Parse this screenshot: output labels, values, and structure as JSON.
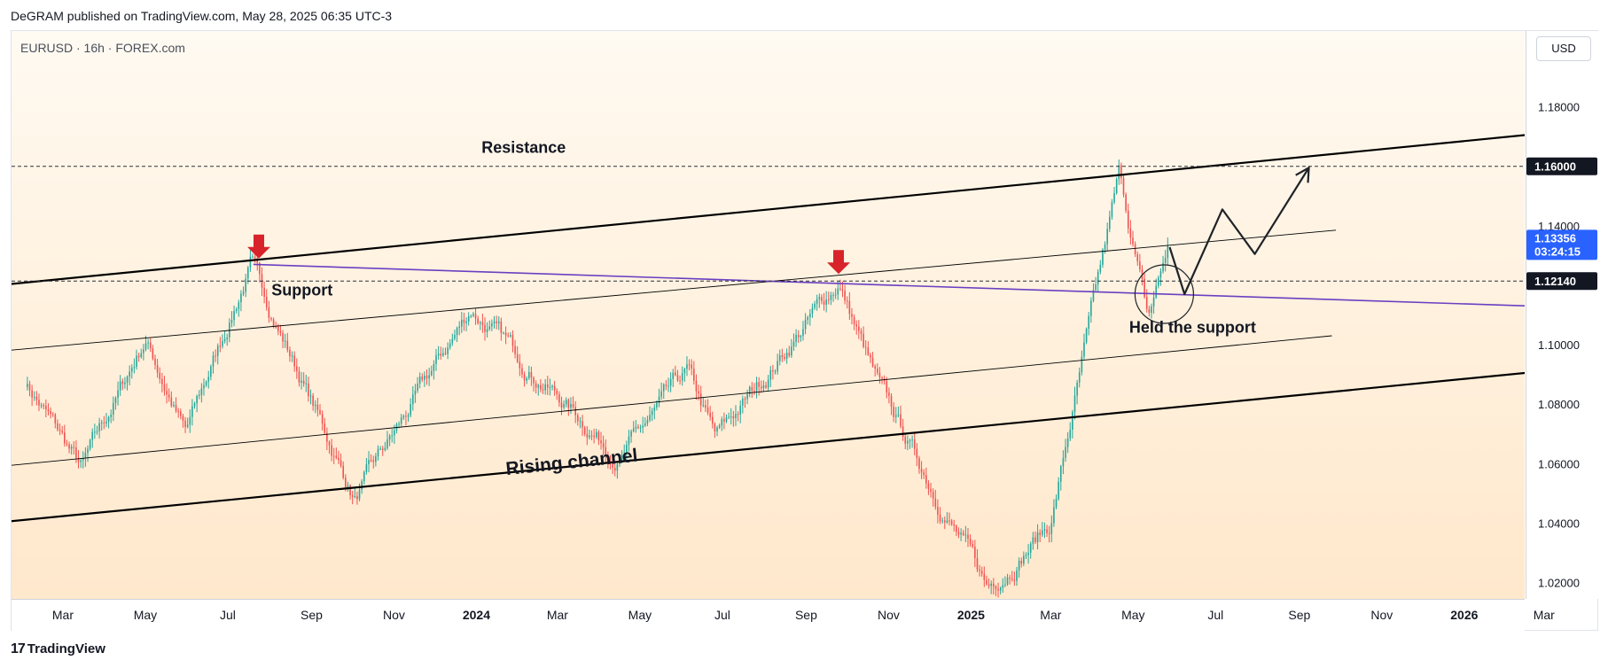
{
  "header": {
    "published_line": "DeGRAM published on TradingView.com, May 28, 2025 06:35 UTC-3"
  },
  "chart_header": {
    "symbol_line": "EURUSD · 16h · FOREX.com",
    "currency": "USD"
  },
  "footer": {
    "logo_text": "TradingView",
    "logo_mark": "17"
  },
  "colors": {
    "up_candle": "#26a69a",
    "down_candle": "#ef5350",
    "channel_line": "#000000",
    "trend_line": "#6a3fc1",
    "arrow": "#d8232a",
    "price_label_bg": "#131722",
    "current_price_bg": "#2962ff"
  },
  "chart_data": {
    "type": "candlestick",
    "symbol": "EURUSD",
    "interval": "16h",
    "x_tick_labels": [
      "Mar",
      "May",
      "Jul",
      "Sep",
      "Nov",
      "2024",
      "Mar",
      "May",
      "Jul",
      "Sep",
      "Nov",
      "2025",
      "Mar",
      "May",
      "Jul",
      "Sep",
      "Nov",
      "2026",
      "Mar"
    ],
    "x_tick_bold": [
      false,
      false,
      false,
      false,
      false,
      true,
      false,
      false,
      false,
      false,
      false,
      true,
      false,
      false,
      false,
      false,
      false,
      true,
      false
    ],
    "y_tick_labels": [
      "1.18000",
      "1.14000",
      "1.10000",
      "1.08000",
      "1.06000",
      "1.04000",
      "1.02000"
    ],
    "y_range": [
      1.0145,
      1.2055
    ],
    "price_path": [
      [
        "2023-02-01",
        1.088
      ],
      [
        "2023-03-15",
        1.058
      ],
      [
        "2023-05-01",
        1.102
      ],
      [
        "2023-05-31",
        1.07
      ],
      [
        "2023-07-18",
        1.127
      ],
      [
        "2023-10-03",
        1.048
      ],
      [
        "2023-12-28",
        1.112
      ],
      [
        "2024-04-16",
        1.062
      ],
      [
        "2024-06-05",
        1.09
      ],
      [
        "2024-06-26",
        1.068
      ],
      [
        "2024-09-25",
        1.121
      ],
      [
        "2024-10-25",
        1.085
      ],
      [
        "2025-01-13",
        1.018
      ],
      [
        "2025-03-01",
        1.04
      ],
      [
        "2025-04-21",
        1.157
      ],
      [
        "2025-05-12",
        1.108
      ],
      [
        "2025-05-27",
        1.1336
      ]
    ],
    "horizontal_levels": [
      {
        "label": "1.16000",
        "value": 1.16
      },
      {
        "label": "1.12140",
        "value": 1.1214
      }
    ],
    "current_price": {
      "label": "1.13356",
      "value": 1.13356,
      "countdown": "03:24:15"
    },
    "channel_lines": [
      {
        "name": "upper",
        "points": [
          [
            "2023-01-01",
            1.1195
          ],
          [
            "2026-04-01",
            1.1725
          ]
        ]
      },
      {
        "name": "lower",
        "points": [
          [
            "2023-01-01",
            1.0397
          ],
          [
            "2026-04-01",
            1.0925
          ]
        ]
      },
      {
        "name": "mid-upper",
        "points": [
          [
            "2023-01-01",
            1.0973
          ],
          [
            "2025-09-28",
            1.1385
          ]
        ]
      },
      {
        "name": "mid-lower",
        "points": [
          [
            "2023-01-01",
            1.0585
          ],
          [
            "2025-09-25",
            1.103
          ]
        ]
      }
    ],
    "trend_line": {
      "points": [
        [
          "2023-07-20",
          1.127
        ],
        [
          "2026-03-25",
          1.1125
        ]
      ]
    },
    "projection_path": [
      [
        "2025-05-28",
        1.1328
      ],
      [
        "2025-06-08",
        1.117
      ],
      [
        "2025-07-06",
        1.1455
      ],
      [
        "2025-07-30",
        1.1305
      ],
      [
        "2025-09-08",
        1.1595
      ]
    ],
    "down_arrows": [
      [
        "2023-07-24",
        1.1275
      ],
      [
        "2024-09-25",
        1.1223
      ]
    ],
    "circle_marker": {
      "date": "2025-05-24",
      "value": 1.117
    },
    "annotations": [
      {
        "text": "Resistance",
        "date": "2024-02-05",
        "value": 1.1645
      },
      {
        "text": "Support",
        "date": "2023-08-25",
        "value": 1.1165
      },
      {
        "text": "Held the support",
        "date": "2025-06-14",
        "value": 1.104
      },
      {
        "text": "Rising channel",
        "date": "2024-03-12",
        "value": 1.0585
      }
    ]
  }
}
